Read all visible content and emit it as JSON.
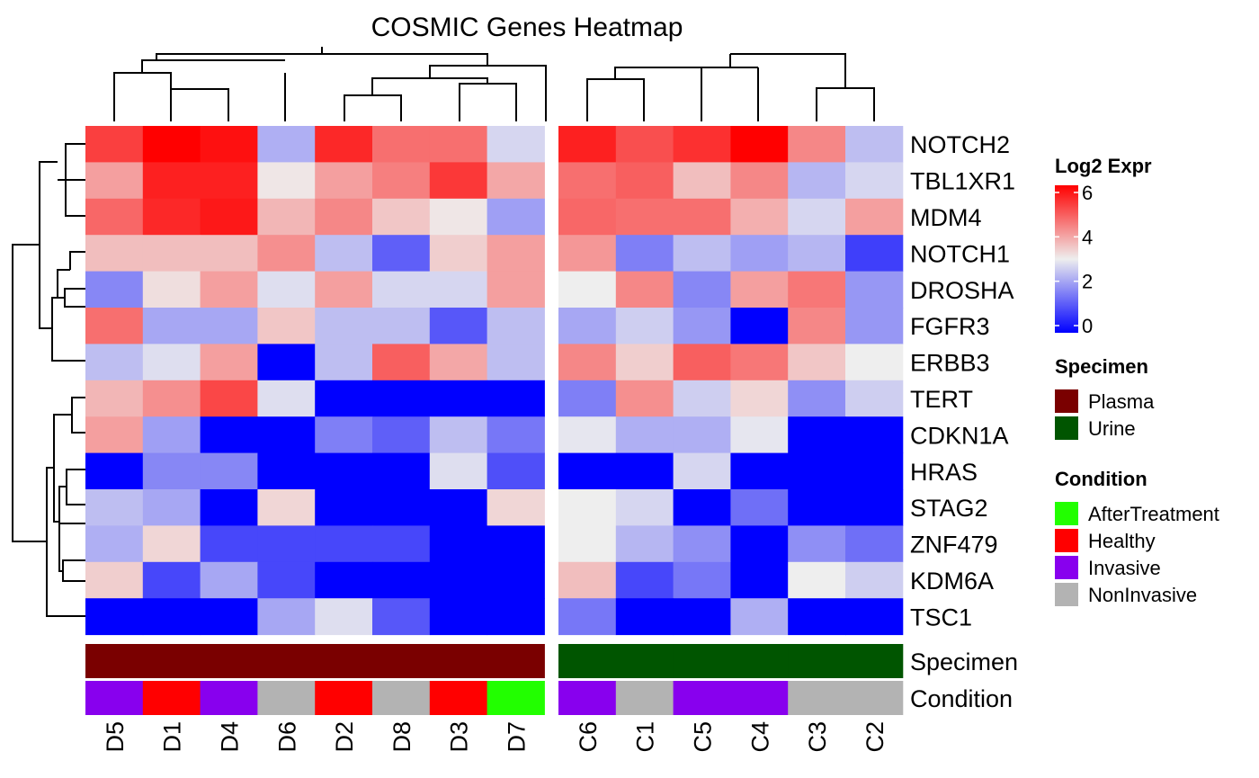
{
  "chart_data": {
    "type": "heatmap",
    "title": "COSMIC Genes Heatmap",
    "rows": [
      "NOTCH2",
      "TBL1XR1",
      "MDM4",
      "NOTCH1",
      "DROSHA",
      "FGFR3",
      "ERBB3",
      "TERT",
      "CDKN1A",
      "HRAS",
      "STAG2",
      "ZNF479",
      "KDM6A",
      "TSC1"
    ],
    "column_groups": [
      {
        "columns": [
          "D5",
          "D1",
          "D4",
          "D6",
          "D2",
          "D8",
          "D3",
          "D7"
        ]
      },
      {
        "columns": [
          "C6",
          "C1",
          "C5",
          "C4",
          "C3",
          "C2"
        ]
      }
    ],
    "values": [
      [
        5.2,
        6.2,
        5.8,
        2.2,
        5.5,
        4.6,
        4.6,
        2.7,
        5.6,
        5.0,
        5.4,
        6.2,
        4.3,
        2.4
      ],
      [
        4.0,
        5.6,
        5.6,
        3.1,
        4.0,
        4.4,
        5.3,
        3.9,
        4.6,
        4.8,
        3.6,
        4.3,
        2.3,
        2.7
      ],
      [
        4.7,
        5.5,
        5.7,
        3.7,
        4.3,
        3.5,
        3.1,
        2.0,
        4.7,
        4.6,
        4.6,
        3.8,
        2.7,
        4.0
      ],
      [
        3.6,
        3.6,
        3.6,
        4.2,
        2.4,
        1.2,
        3.4,
        4.0,
        4.1,
        1.6,
        2.4,
        2.0,
        2.3,
        0.8
      ],
      [
        1.7,
        3.2,
        4.0,
        2.8,
        4.0,
        2.7,
        2.7,
        4.0,
        3.0,
        4.3,
        1.7,
        4.0,
        4.5,
        1.9
      ],
      [
        4.6,
        2.1,
        2.1,
        3.5,
        2.4,
        2.4,
        1.1,
        2.4,
        2.1,
        2.6,
        1.9,
        0.0,
        4.3,
        1.9
      ],
      [
        2.4,
        2.8,
        4.0,
        0.0,
        2.4,
        4.8,
        3.9,
        2.4,
        4.3,
        3.4,
        4.8,
        4.5,
        3.5,
        3.0
      ],
      [
        3.7,
        4.2,
        5.1,
        2.8,
        0.0,
        0.0,
        0.0,
        0.0,
        1.6,
        4.2,
        2.6,
        3.3,
        1.8,
        2.6
      ],
      [
        4.0,
        2.0,
        0.0,
        0.0,
        1.6,
        1.2,
        2.4,
        1.5,
        2.9,
        2.2,
        2.2,
        2.9,
        0.0,
        0.0
      ],
      [
        0.0,
        1.7,
        1.7,
        0.0,
        0.0,
        0.0,
        2.8,
        1.0,
        0.0,
        0.0,
        2.7,
        0.0,
        0.0,
        0.0
      ],
      [
        2.4,
        2.1,
        0.0,
        3.3,
        0.0,
        0.0,
        0.0,
        3.3,
        3.0,
        2.7,
        0.0,
        1.4,
        0.0,
        0.0
      ],
      [
        2.2,
        3.3,
        0.9,
        0.9,
        0.9,
        0.9,
        0.0,
        0.0,
        3.0,
        2.3,
        1.8,
        0.0,
        1.8,
        1.4
      ],
      [
        3.4,
        0.9,
        2.1,
        0.9,
        0.0,
        0.0,
        0.0,
        0.0,
        3.6,
        0.9,
        1.5,
        0.0,
        3.0,
        2.6
      ],
      [
        0.0,
        0.0,
        0.0,
        2.1,
        2.8,
        1.1,
        0.0,
        0.0,
        1.5,
        0.0,
        0.0,
        2.2,
        0.0,
        0.0
      ]
    ],
    "specimen": [
      "Plasma",
      "Plasma",
      "Plasma",
      "Plasma",
      "Plasma",
      "Plasma",
      "Plasma",
      "Plasma",
      "Urine",
      "Urine",
      "Urine",
      "Urine",
      "Urine",
      "Urine"
    ],
    "condition": [
      "Invasive",
      "Healthy",
      "Invasive",
      "NonInvasive",
      "Healthy",
      "NonInvasive",
      "Healthy",
      "AfterTreatment",
      "Invasive",
      "NonInvasive",
      "Invasive",
      "Invasive",
      "NonInvasive",
      "NonInvasive"
    ],
    "annotation_labels": [
      "Specimen",
      "Condition"
    ],
    "color_scale": {
      "title": "Log2 Expr",
      "ticks": [
        0,
        2,
        4,
        6
      ],
      "stops": [
        {
          "value": 0,
          "color": "#0000FF"
        },
        {
          "value": 3,
          "color": "#EEEEEE"
        },
        {
          "value": 6,
          "color": "#FF0000"
        }
      ]
    },
    "specimen_legend": {
      "title": "Specimen",
      "items": [
        {
          "label": "Plasma",
          "color": "#7A0000"
        },
        {
          "label": "Urine",
          "color": "#005500"
        }
      ]
    },
    "condition_legend": {
      "title": "Condition",
      "items": [
        {
          "label": "AfterTreatment",
          "color": "#22FF00"
        },
        {
          "label": "Healthy",
          "color": "#FF0000"
        },
        {
          "label": "Invasive",
          "color": "#8800EE"
        },
        {
          "label": "NonInvasive",
          "color": "#B3B3B3"
        }
      ]
    },
    "legend_position": "right"
  }
}
